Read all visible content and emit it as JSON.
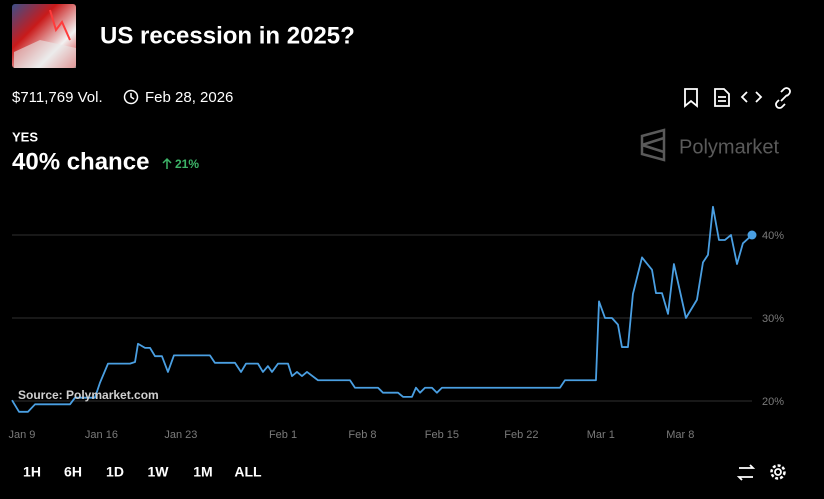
{
  "header": {
    "title": "US recession in 2025?",
    "volume": "$711,769 Vol.",
    "end_date": "Feb 28, 2026",
    "outcome": "YES",
    "chance": "40% chance",
    "change": "21%",
    "brand": "Polymarket"
  },
  "chart_data": {
    "type": "line",
    "source": "Source: Polymarket.com",
    "x": [
      -0.88,
      -0.26,
      0.53,
      1.15,
      1.59,
      4.23,
      4.67,
      6.43,
      6.87,
      7.58,
      9.52,
      9.96,
      10.22,
      10.84,
      11.28,
      11.72,
      12.33,
      12.86,
      13.39,
      16.56,
      17.0,
      18.77,
      19.3,
      19.74,
      20.79,
      21.23,
      21.67,
      22.03,
      22.56,
      23.44,
      23.79,
      24.23,
      24.67,
      25.11,
      26.08,
      28.9,
      29.34,
      31.37,
      31.81,
      33.13,
      33.57,
      34.36,
      34.71,
      35.07,
      35.51,
      36.12,
      36.56,
      37.0,
      47.4,
      47.84,
      50.57,
      50.84,
      51.37,
      51.98,
      52.51,
      52.86,
      53.39,
      53.83,
      54.63,
      54.98,
      55.51,
      55.86,
      56.39,
      56.92,
      57.44,
      58.5,
      59.47,
      60.0,
      60.44,
      60.88,
      61.41,
      61.94,
      62.47,
      63.0,
      63.52,
      64.32
    ],
    "series": [
      {
        "color": "#4a9fe2",
        "values": [
          20.1,
          18.7,
          18.7,
          19.6,
          19.6,
          19.6,
          20.4,
          20.4,
          22.2,
          24.5,
          24.5,
          24.7,
          26.9,
          26.4,
          26.4,
          25.4,
          25.4,
          23.5,
          25.5,
          25.5,
          24.6,
          24.6,
          23.5,
          24.5,
          24.5,
          23.5,
          24.2,
          23.5,
          24.5,
          24.5,
          23.0,
          23.5,
          23.0,
          23.5,
          22.5,
          22.5,
          21.6,
          21.6,
          21.0,
          21.0,
          20.5,
          20.5,
          21.6,
          21.0,
          21.6,
          21.6,
          21.0,
          21.6,
          21.6,
          22.5,
          22.5,
          32.0,
          30.0,
          30.0,
          29.2,
          26.5,
          26.5,
          32.9,
          37.3,
          36.7,
          35.8,
          33.0,
          33.0,
          30.5,
          36.5,
          30.0,
          32.2,
          36.7,
          37.6,
          43.4,
          39.4,
          39.4,
          40.0,
          36.5,
          39.0,
          40.0
        ]
      }
    ],
    "xlim": [
      -0.88,
      64.32
    ],
    "xticks": [
      {
        "value": 0,
        "label": "Jan 9"
      },
      {
        "value": 7,
        "label": "Jan 16"
      },
      {
        "value": 14,
        "label": "Jan 23"
      },
      {
        "value": 23,
        "label": "Feb 1"
      },
      {
        "value": 30,
        "label": "Feb 8"
      },
      {
        "value": 37,
        "label": "Feb 15"
      },
      {
        "value": 44,
        "label": "Feb 22"
      },
      {
        "value": 51,
        "label": "Mar 1"
      },
      {
        "value": 58,
        "label": "Mar 8"
      }
    ],
    "ylim": [
      19,
      44
    ],
    "yticks": [
      {
        "value": 20,
        "label": "20%"
      },
      {
        "value": 30,
        "label": "30%"
      },
      {
        "value": 40,
        "label": "40%"
      }
    ],
    "grid": true
  },
  "ranges": [
    "1H",
    "6H",
    "1D",
    "1W",
    "1M",
    "ALL"
  ]
}
